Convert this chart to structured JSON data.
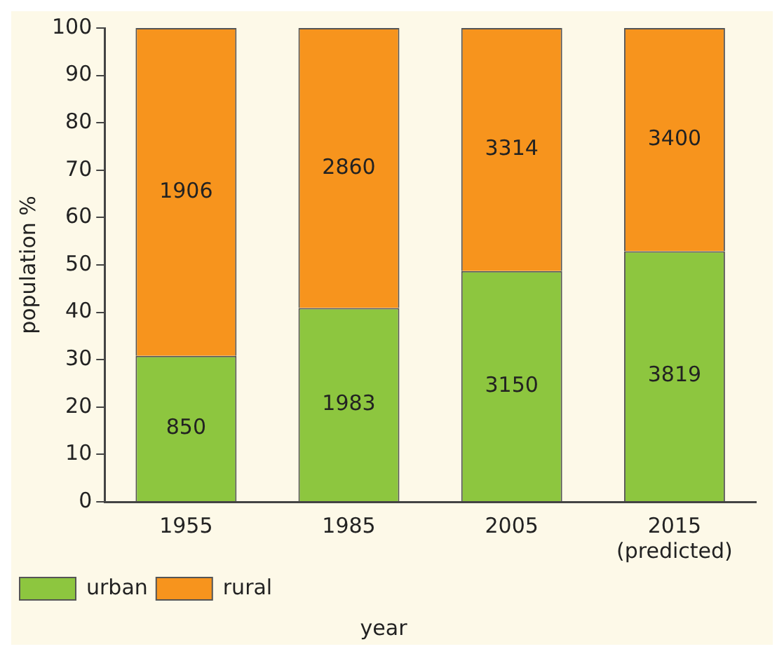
{
  "chart_data": {
    "type": "bar",
    "stacked": true,
    "xlabel": "year",
    "ylabel": "population %",
    "categories": [
      "1955",
      "1985",
      "2005",
      "2015\n(predicted)"
    ],
    "series": [
      {
        "name": "urban",
        "color": "#8dc63f",
        "values": [
          30.8,
          40.9,
          48.7,
          52.9
        ]
      },
      {
        "name": "rural",
        "color": "#f7941d",
        "values": [
          69.2,
          59.1,
          51.3,
          47.1
        ]
      }
    ],
    "annotations": [
      "850",
      "1983",
      "3150",
      "3819",
      "1906",
      "2860",
      "3314",
      "3400"
    ],
    "ylim": [
      0,
      100
    ],
    "yticks": [
      0,
      10,
      20,
      30,
      40,
      50,
      60,
      70,
      80,
      90,
      100
    ],
    "grid": false,
    "legend": "bottom"
  }
}
